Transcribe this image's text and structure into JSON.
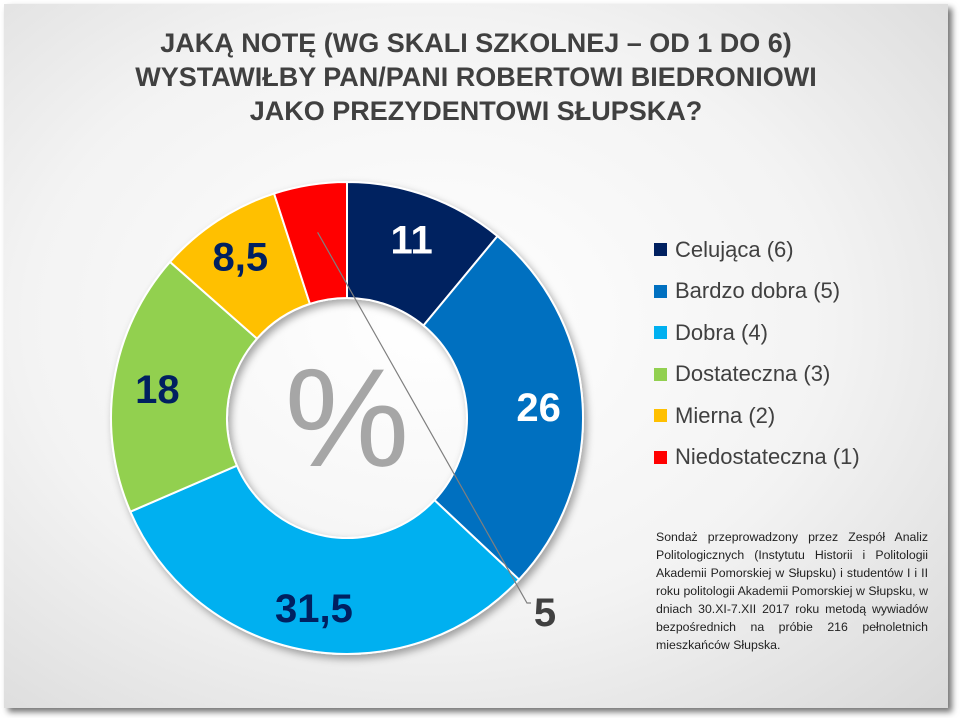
{
  "title_lines": [
    "JAKĄ NOTĘ (WG SKALI SZKOLNEJ – OD 1 DO 6)",
    "WYSTAWIŁBY PAN/PANI ROBERTOWI BIEDRONIOWI",
    "JAKO PREZYDENTOWI SŁUPSKA?"
  ],
  "center_label": "%",
  "note": "Sondaż przeprowadzony przez Zespół Analiz Politologicznych (Instytutu Historii i Politologii Akademii Pomorskiej w Słupsku) i studentów I i II roku politologii Akademii Pomorskiej w Słupsku, w dniach 30.XI-7.XII 2017 roku metodą wywiadów bezpośrednich na próbie 216 pełnoletnich mieszkańców Słupska.",
  "chart_data": {
    "type": "pie",
    "variant": "doughnut",
    "legend_position": "right",
    "slices": [
      {
        "category": "Celująca (6)",
        "value": 11,
        "label": "11",
        "color": "#002060",
        "label_color": "#ffffff"
      },
      {
        "category": "Bardzo dobra (5)",
        "value": 26,
        "label": "26",
        "color": "#0070C0",
        "label_color": "#ffffff"
      },
      {
        "category": "Dobra (4)",
        "value": 31.5,
        "label": "31,5",
        "color": "#00B0F0",
        "label_color": "#002060"
      },
      {
        "category": "Dostateczna (3)",
        "value": 18,
        "label": "18",
        "color": "#92D050",
        "label_color": "#002060"
      },
      {
        "category": "Mierna (2)",
        "value": 8.5,
        "label": "8,5",
        "color": "#FFC000",
        "label_color": "#002060"
      },
      {
        "category": "Niedostateczna (1)",
        "value": 5,
        "label": "5",
        "color": "#FF0000",
        "label_color": "#404040"
      }
    ]
  }
}
